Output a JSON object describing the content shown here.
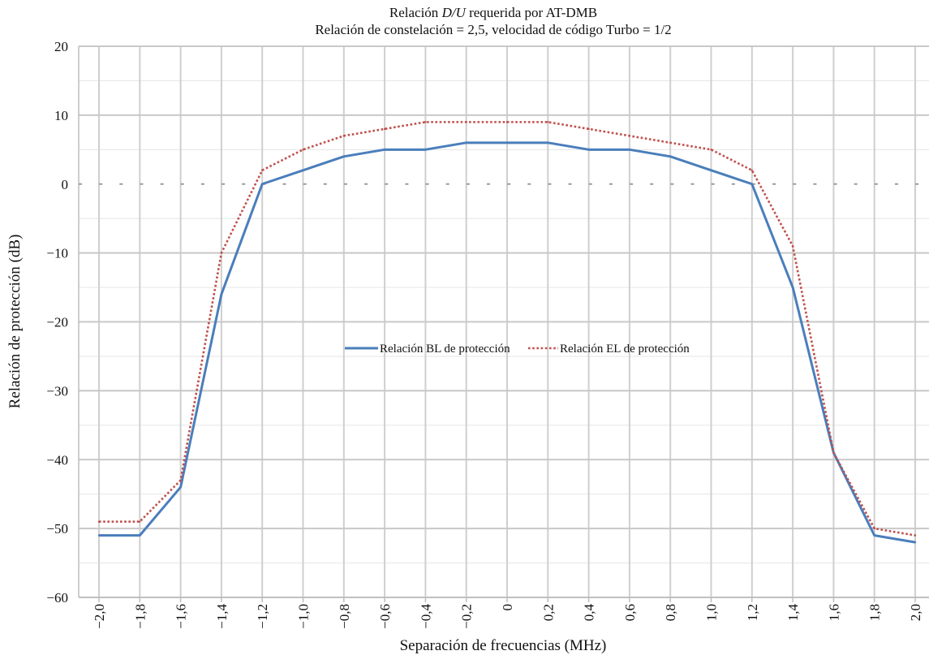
{
  "chart_data": {
    "type": "line",
    "title_parts": [
      "Relación ",
      "D/U",
      " requerida por AT-DMB"
    ],
    "subtitle": "Relación de constelación = 2,5, velocidad de código Turbo = 1/2",
    "xlabel": "Separación de frecuencias (MHz)",
    "ylabel": "Relación de protección (dB)",
    "ylim": [
      -60,
      20
    ],
    "yticks": [
      20,
      10,
      0,
      -10,
      -20,
      -30,
      -40,
      -50,
      -60
    ],
    "ytick_labels": [
      "20",
      "10",
      "0",
      "−10",
      "−20",
      "−30",
      "−40",
      "−50",
      "−60"
    ],
    "x": [
      -2.0,
      -1.8,
      -1.6,
      -1.4,
      -1.2,
      -1.0,
      -0.8,
      -0.6,
      -0.4,
      -0.2,
      0,
      0.2,
      0.4,
      0.6,
      0.8,
      1.0,
      1.2,
      1.4,
      1.6,
      1.8,
      2.0
    ],
    "xtick_labels": [
      "−2,0",
      "−1,8",
      "−1,6",
      "−1,4",
      "−1,2",
      "−1,0",
      "−0,8",
      "−0,6",
      "−0,4",
      "−0,2",
      "0",
      "0,2",
      "0,4",
      "0,6",
      "0,8",
      "1,0",
      "1,2",
      "1,4",
      "1,6",
      "1,8",
      "2,0"
    ],
    "grid": true,
    "legend_position": "center",
    "series": [
      {
        "name": "Relación BL de protección",
        "color": "#4a7ebb",
        "style": "solid",
        "values": [
          -51,
          -51,
          -44,
          -16,
          0,
          2,
          4,
          5,
          5,
          6,
          6,
          6,
          5,
          5,
          4,
          2,
          0,
          -15,
          -39,
          -51,
          -52
        ]
      },
      {
        "name": "Relación EL de protección",
        "color": "#c0504d",
        "style": "dotted",
        "values": [
          -49,
          -49,
          -43,
          -10,
          2,
          5,
          7,
          8,
          9,
          9,
          9,
          9,
          8,
          7,
          6,
          5,
          2,
          -9,
          -39,
          -50,
          -51
        ]
      }
    ]
  }
}
